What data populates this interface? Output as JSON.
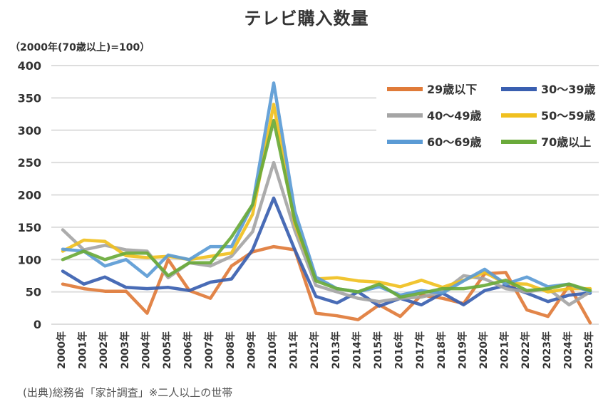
{
  "chart_data": {
    "type": "line",
    "title": "テレビ購入数量",
    "unit_label": "（2000年(70歳以上)=100）",
    "source_note": "(出典)総務省「家計調査」※二人以上の世帯",
    "xlabel": "",
    "ylabel": "",
    "ylim": [
      0,
      400
    ],
    "yticks": [
      0,
      50,
      100,
      150,
      200,
      250,
      300,
      350,
      400
    ],
    "grid": true,
    "legend_position": "top-right",
    "categories": [
      "2000年",
      "2001年",
      "2002年",
      "2003年",
      "2004年",
      "2005年",
      "2006年",
      "2007年",
      "2008年",
      "2009年",
      "2010年",
      "2011年",
      "2012年",
      "2013年",
      "2014年",
      "2015年",
      "2016年",
      "2017年",
      "2018年",
      "2019年",
      "2020年",
      "2021年",
      "2022年",
      "2023年",
      "2024年",
      "2025年"
    ],
    "series": [
      {
        "name": "29歳以下",
        "color": "#E07B39",
        "values": [
          62,
          55,
          51,
          51,
          17,
          100,
          52,
          40,
          90,
          112,
          120,
          115,
          17,
          13,
          7,
          30,
          12,
          45,
          40,
          32,
          78,
          80,
          22,
          12,
          60,
          2
        ]
      },
      {
        "name": "30〜39歳",
        "color": "#3A5FB0",
        "values": [
          82,
          62,
          73,
          57,
          55,
          57,
          52,
          65,
          70,
          115,
          195,
          115,
          43,
          33,
          50,
          28,
          40,
          30,
          48,
          30,
          52,
          60,
          48,
          35,
          45,
          48
        ]
      },
      {
        "name": "40〜49歳",
        "color": "#A5A5A5",
        "values": [
          146,
          115,
          122,
          115,
          113,
          72,
          95,
          90,
          105,
          143,
          250,
          145,
          60,
          50,
          40,
          35,
          40,
          42,
          50,
          75,
          70,
          55,
          50,
          55,
          30,
          50
        ]
      },
      {
        "name": "50〜59歳",
        "color": "#F0C020",
        "values": [
          113,
          130,
          128,
          106,
          103,
          105,
          100,
          105,
          110,
          170,
          340,
          155,
          70,
          72,
          67,
          65,
          58,
          68,
          57,
          68,
          80,
          63,
          62,
          50,
          55,
          55
        ]
      },
      {
        "name": "60〜69歳",
        "color": "#5B9BD5",
        "values": [
          116,
          113,
          90,
          100,
          74,
          107,
          100,
          120,
          120,
          185,
          373,
          175,
          73,
          55,
          50,
          58,
          45,
          52,
          48,
          67,
          85,
          62,
          73,
          58,
          62,
          50
        ]
      },
      {
        "name": "70歳以上",
        "color": "#6AAA3A",
        "values": [
          100,
          113,
          100,
          110,
          110,
          75,
          95,
          95,
          135,
          185,
          315,
          160,
          67,
          55,
          50,
          62,
          42,
          48,
          55,
          55,
          60,
          68,
          52,
          55,
          62,
          52
        ]
      }
    ]
  }
}
